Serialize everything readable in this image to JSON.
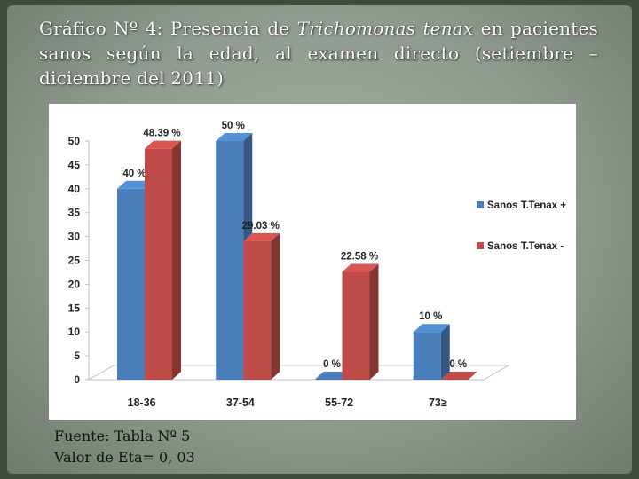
{
  "slide": {
    "title_part1": "Gráfico Nº 4: Presencia de ",
    "title_italic": "Trichomonas tenax",
    "title_part2": " en pacientes sanos según la edad, al examen directo (setiembre – diciembre del 2011)",
    "footer_line1": "Fuente: Tabla Nº  5",
    "footer_line2": "Valor de  Eta= 0, 03"
  },
  "chart_data": {
    "type": "bar",
    "categories": [
      "18-36",
      "37-54",
      "55-72",
      "73≥"
    ],
    "series": [
      {
        "name": "Sanos T.Tenax +",
        "values": [
          40,
          50,
          0,
          10
        ],
        "labels": [
          "40 %",
          "50 %",
          "0 %",
          "10 %"
        ],
        "color": "#4a7ebb"
      },
      {
        "name": "Sanos T.Tenax -",
        "values": [
          48.39,
          29.03,
          22.58,
          0
        ],
        "labels": [
          "48.39 %",
          "29.03 %",
          "22.58 %",
          "0 %"
        ],
        "color": "#be4b48"
      }
    ],
    "ylim": [
      0,
      50
    ],
    "yticks": [
      "0",
      "5",
      "10",
      "15",
      "20",
      "25",
      "30",
      "35",
      "40",
      "45",
      "50"
    ],
    "legend_position": "right",
    "style": "3d-clustered"
  }
}
